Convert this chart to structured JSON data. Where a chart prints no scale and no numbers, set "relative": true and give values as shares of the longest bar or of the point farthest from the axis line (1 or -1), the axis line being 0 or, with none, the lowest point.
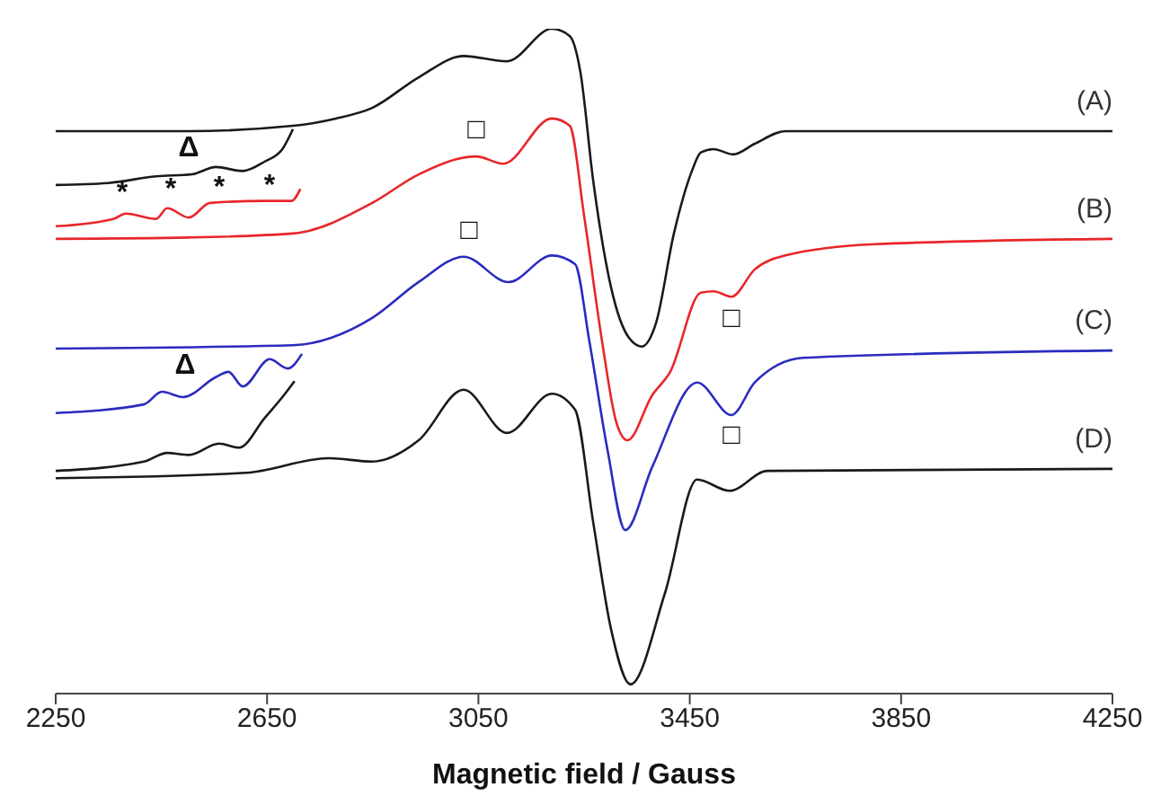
{
  "chart_data": {
    "type": "line",
    "relative": true,
    "xlabel": "Magnetic field / Gauss",
    "xlim": [
      2250,
      4250
    ],
    "xticks": [
      2250,
      2650,
      3050,
      3450,
      3850,
      4250
    ],
    "series": [
      {
        "name": "(A)",
        "color": "#1a1a1a",
        "x": [
          2250,
          2500,
          2699,
          2780,
          2849,
          2937,
          3022,
          3104,
          3189,
          3223,
          3243,
          3267,
          3301,
          3335,
          3359,
          3386,
          3420,
          3454,
          3471,
          3495,
          3532,
          3573,
          3631,
          4250
        ],
        "values": [
          0.846,
          0.846,
          0.854,
          0.865,
          0.881,
          0.927,
          0.959,
          0.951,
          1.0,
          0.989,
          0.935,
          0.773,
          0.611,
          0.535,
          0.522,
          0.557,
          0.692,
          0.786,
          0.814,
          0.819,
          0.811,
          0.827,
          0.846,
          0.846
        ]
      },
      {
        "color": "#1a1a1a",
        "x": [
          2250,
          2349,
          2440,
          2508,
          2553,
          2604,
          2645,
          2679,
          2699
        ],
        "values": [
          0.765,
          0.768,
          0.778,
          0.781,
          0.792,
          0.786,
          0.8,
          0.819,
          0.849
        ]
      },
      {
        "name": "(B)",
        "color": "#e8262a",
        "x": [
          2250,
          2500,
          2699,
          2849,
          2937,
          3046,
          3097,
          3189,
          3223,
          3250,
          3284,
          3311,
          3332,
          3379,
          3413,
          3471,
          3495,
          3529,
          3573,
          3631,
          3801,
          4250
        ],
        "values": [
          0.684,
          0.686,
          0.692,
          0.738,
          0.781,
          0.808,
          0.797,
          0.865,
          0.854,
          0.719,
          0.53,
          0.408,
          0.381,
          0.449,
          0.484,
          0.603,
          0.605,
          0.597,
          0.638,
          0.659,
          0.676,
          0.684
        ]
      },
      {
        "color": "#e8262a",
        "x": [
          2250,
          2359,
          2383,
          2440,
          2461,
          2502,
          2542,
          2645,
          2696,
          2713
        ],
        "values": [
          0.703,
          0.714,
          0.722,
          0.714,
          0.73,
          0.716,
          0.738,
          0.741,
          0.741,
          0.759
        ]
      },
      {
        "name": "(C)",
        "color": "#2b2bbf",
        "x": [
          2250,
          2699,
          2849,
          2937,
          3022,
          3107,
          3189,
          3233,
          3260,
          3294,
          3328,
          3379,
          3464,
          3529,
          3573,
          3665,
          4250
        ],
        "values": [
          0.519,
          0.524,
          0.565,
          0.619,
          0.657,
          0.619,
          0.659,
          0.646,
          0.53,
          0.368,
          0.246,
          0.341,
          0.468,
          0.419,
          0.468,
          0.505,
          0.516
        ]
      },
      {
        "color": "#2b2bbf",
        "x": [
          2250,
          2417,
          2451,
          2491,
          2553,
          2577,
          2604,
          2655,
          2689,
          2716
        ],
        "values": [
          0.422,
          0.435,
          0.454,
          0.446,
          0.476,
          0.484,
          0.462,
          0.503,
          0.489,
          0.511
        ]
      },
      {
        "name": "(D)",
        "color": "#1a1a1a",
        "x": [
          2250,
          2610,
          2767,
          2849,
          2937,
          3022,
          3104,
          3189,
          3233,
          3267,
          3301,
          3338,
          3403,
          3464,
          3525,
          3597,
          4250
        ],
        "values": [
          0.324,
          0.332,
          0.354,
          0.349,
          0.381,
          0.457,
          0.392,
          0.451,
          0.427,
          0.259,
          0.097,
          0.014,
          0.151,
          0.322,
          0.305,
          0.335,
          0.338
        ]
      },
      {
        "color": "#1a1a1a",
        "x": [
          2250,
          2417,
          2461,
          2502,
          2559,
          2597,
          2645,
          2682,
          2702
        ],
        "values": [
          0.335,
          0.349,
          0.362,
          0.359,
          0.376,
          0.37,
          0.414,
          0.449,
          0.47
        ]
      }
    ],
    "annotations": [
      "Δ",
      "*",
      "*",
      "*",
      "*",
      "Δ",
      "□",
      "□",
      "□",
      "□"
    ]
  }
}
